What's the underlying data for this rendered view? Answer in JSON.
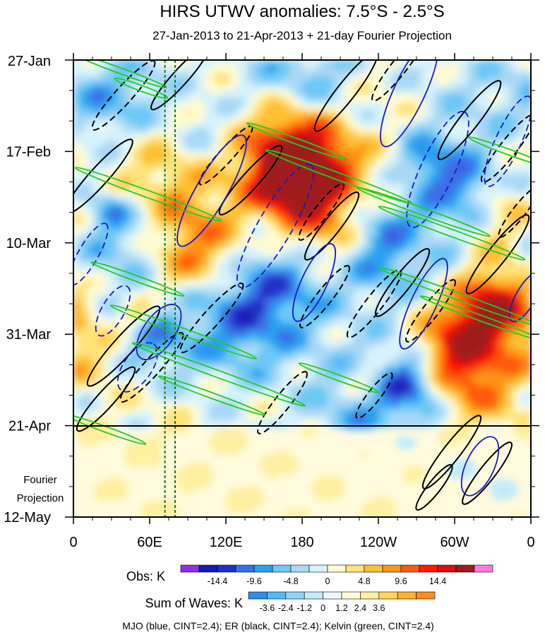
{
  "chart_data": {
    "type": "heatmap",
    "title": "HIRS UTWV anomalies: 7.5°S - 2.5°S",
    "subtitle": "27-Jan-2013 to 21-Apr-2013 + 21-day Fourier Projection",
    "x_axis": {
      "range_deg_east": [
        0,
        360
      ],
      "ticks": [
        {
          "lon": 0,
          "label": "0"
        },
        {
          "lon": 60,
          "label": "60E"
        },
        {
          "lon": 120,
          "label": "120E"
        },
        {
          "lon": 180,
          "label": "180"
        },
        {
          "lon": 240,
          "label": "120W"
        },
        {
          "lon": 300,
          "label": "60W"
        },
        {
          "lon": 360,
          "label": "0"
        }
      ]
    },
    "y_axis": {
      "range_days": [
        0,
        105
      ],
      "ticks": [
        {
          "day": 0,
          "label": "27-Jan"
        },
        {
          "day": 21,
          "label": "17-Feb"
        },
        {
          "day": 42,
          "label": "10-Mar"
        },
        {
          "day": 63,
          "label": "31-Mar"
        },
        {
          "day": 84,
          "label": "21-Apr"
        },
        {
          "day": 105,
          "label": "12-May"
        }
      ],
      "projection_start_day": 84,
      "projection_label": [
        "Fourier",
        "Projection"
      ]
    },
    "vertical_markers_lon": [
      72,
      80
    ],
    "obs_colorbar": {
      "label": "Obs: K",
      "colors": [
        "#8f2ee0",
        "#1a1ab8",
        "#2030c8",
        "#3a6ee6",
        "#2aa0f0",
        "#6cc8f5",
        "#a8d8f5",
        "#d6f2fb",
        "#fffbd0",
        "#ffe27a",
        "#ffc030",
        "#ff9218",
        "#ff5a10",
        "#ff1a00",
        "#d81010",
        "#a01a1a",
        "#ff7ae0"
      ],
      "tick_labels": [
        "-14.4",
        "-9.6",
        "-4.8",
        "0",
        "4.8",
        "9.6",
        "14.4"
      ]
    },
    "waves_colorbar": {
      "label": "Sum of Waves: K",
      "colors": [
        "#2f8ce8",
        "#55b8f5",
        "#8ed4f7",
        "#c2ebfa",
        "#eaf9fd",
        "#fffbdc",
        "#ffefa0",
        "#ffd45e",
        "#ffb030",
        "#ff8c1a"
      ],
      "tick_labels": [
        "-3.6",
        "-2.4",
        "-1.2",
        "0",
        "1.2",
        "2.4",
        "3.6"
      ]
    },
    "contours": [
      {
        "name": "MJO",
        "color": "blue",
        "cint": 2.4
      },
      {
        "name": "ER",
        "color": "black",
        "cint": 2.4
      },
      {
        "name": "Kelvin",
        "color": "green",
        "cint": 2.4
      }
    ],
    "footer": "MJO (blue, CINT=2.4); ER (black, CINT=2.4); Kelvin (green, CINT=2.4)"
  }
}
